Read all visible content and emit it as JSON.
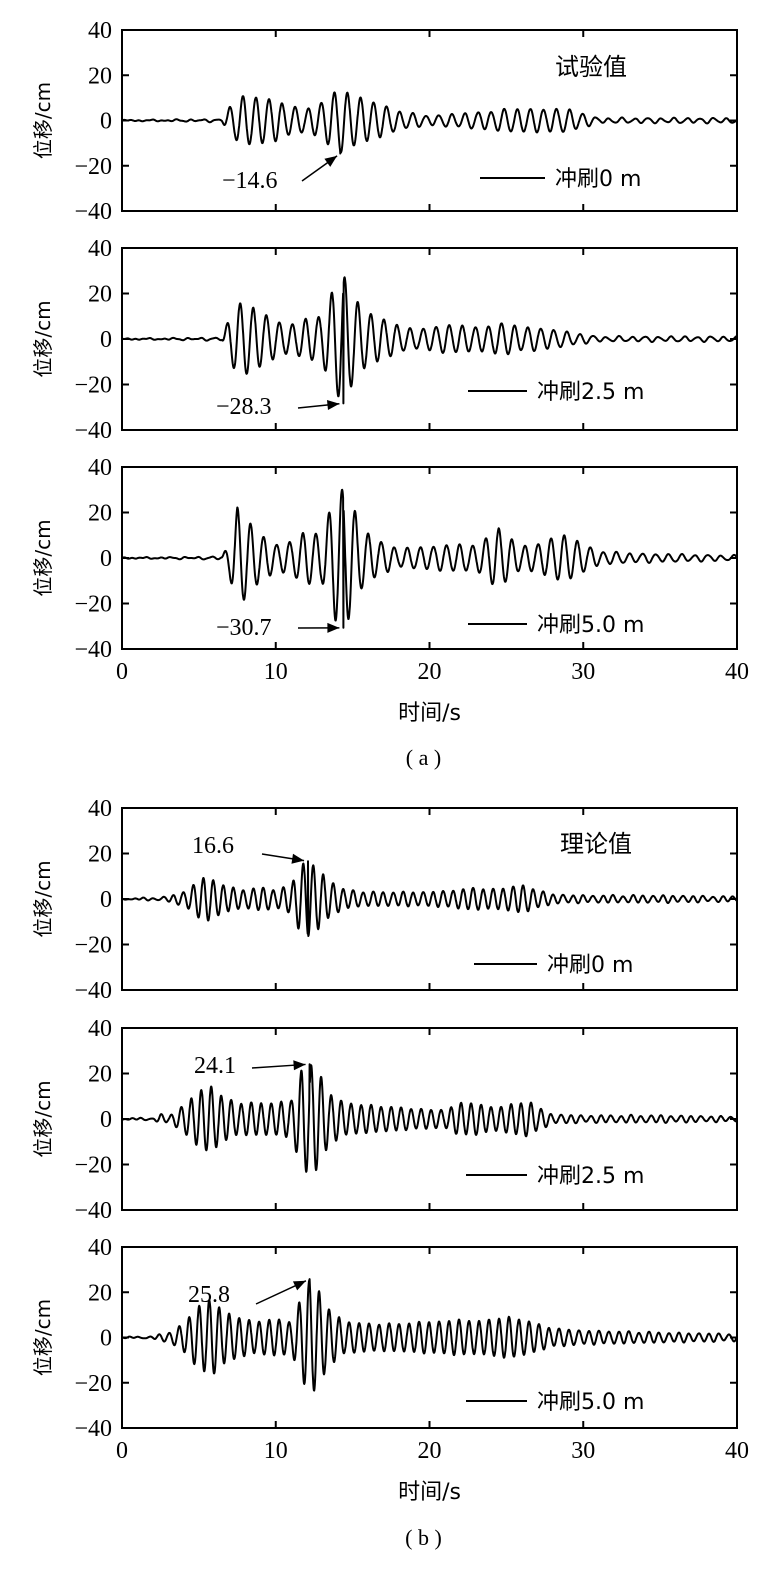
{
  "chart_data": [
    {
      "type": "line",
      "caption": "( a )",
      "title": "试验值",
      "xlabel": "时间/s",
      "ylabel": "位移/cm",
      "xlim": [
        0,
        40
      ],
      "ylim": [
        -40,
        40
      ],
      "xticks": [
        "0",
        "10",
        "20",
        "30",
        "40"
      ],
      "yticks": [
        "40",
        "20",
        "0",
        "-20",
        "-40"
      ],
      "panels": [
        {
          "legend": "冲刷0 m",
          "annotation": {
            "text": "-14.6",
            "x": 14.2,
            "y": -14.6
          },
          "envelope": [
            [
              0,
              0
            ],
            [
              6.5,
              0.5
            ],
            [
              7,
              6
            ],
            [
              7.5,
              9
            ],
            [
              8,
              11
            ],
            [
              9,
              10
            ],
            [
              10,
              9
            ],
            [
              11,
              6
            ],
            [
              12,
              5
            ],
            [
              13,
              8
            ],
            [
              14.2,
              14.6
            ],
            [
              14.7,
              12
            ],
            [
              15.5,
              10
            ],
            [
              16.5,
              8
            ],
            [
              18,
              4
            ],
            [
              20,
              2
            ],
            [
              22,
              3
            ],
            [
              24,
              4
            ],
            [
              25,
              5
            ],
            [
              26,
              5
            ],
            [
              27,
              5
            ],
            [
              28,
              5
            ],
            [
              29,
              5
            ],
            [
              30,
              3
            ],
            [
              31,
              1
            ],
            [
              35,
              1
            ],
            [
              40,
              1
            ]
          ]
        },
        {
          "legend": "冲刷2.5 m",
          "annotation": {
            "text": "-28.3",
            "x": 14.4,
            "y": -28.3
          },
          "envelope": [
            [
              0,
              0
            ],
            [
              6.5,
              0.5
            ],
            [
              7,
              10
            ],
            [
              7.5,
              15
            ],
            [
              8,
              16
            ],
            [
              9,
              12
            ],
            [
              10,
              8
            ],
            [
              11,
              6
            ],
            [
              12,
              9
            ],
            [
              13,
              10
            ],
            [
              13.8,
              23
            ],
            [
              14.4,
              28.3
            ],
            [
              14.9,
              21
            ],
            [
              15.5,
              14
            ],
            [
              16.5,
              10
            ],
            [
              18,
              6
            ],
            [
              19,
              4
            ],
            [
              20,
              5
            ],
            [
              21,
              6
            ],
            [
              22,
              6
            ],
            [
              23,
              5
            ],
            [
              24,
              6
            ],
            [
              25,
              7
            ],
            [
              26,
              5
            ],
            [
              27,
              5
            ],
            [
              28,
              4
            ],
            [
              29,
              3
            ],
            [
              30,
              2
            ],
            [
              31,
              1
            ],
            [
              40,
              1
            ]
          ]
        },
        {
          "legend": "冲刷5.0 m",
          "annotation": {
            "text": "-30.7",
            "x": 14.4,
            "y": -30.7
          },
          "envelope": [
            [
              0,
              0
            ],
            [
              6.5,
              0.5
            ],
            [
              7,
              8
            ],
            [
              7.5,
              22
            ],
            [
              8,
              18
            ],
            [
              9,
              10
            ],
            [
              10,
              6
            ],
            [
              11,
              7
            ],
            [
              12,
              12
            ],
            [
              13,
              10
            ],
            [
              13.8,
              27
            ],
            [
              14.4,
              30.7
            ],
            [
              14.9,
              25
            ],
            [
              15.5,
              14
            ],
            [
              16.5,
              8
            ],
            [
              18,
              4
            ],
            [
              20,
              5
            ],
            [
              22,
              6
            ],
            [
              23,
              5
            ],
            [
              24,
              11
            ],
            [
              24.5,
              13
            ],
            [
              25,
              10
            ],
            [
              26,
              5
            ],
            [
              27,
              6
            ],
            [
              28,
              9
            ],
            [
              29,
              10
            ],
            [
              30,
              6
            ],
            [
              31,
              3
            ],
            [
              33,
              2
            ],
            [
              40,
              1
            ]
          ]
        }
      ]
    },
    {
      "type": "line",
      "caption": "( b )",
      "title": "理论值",
      "xlabel": "时间/s",
      "ylabel": "位移/cm",
      "xlim": [
        0,
        40
      ],
      "ylim": [
        -40,
        40
      ],
      "xticks": [
        "0",
        "10",
        "20",
        "30",
        "40"
      ],
      "yticks": [
        "40",
        "20",
        "0",
        "-20",
        "-40"
      ],
      "panels": [
        {
          "legend": "冲刷0 m",
          "annotation": {
            "text": "16.6",
            "x": 12.1,
            "y": 16.6
          },
          "envelope": [
            [
              0,
              0
            ],
            [
              2,
              0.5
            ],
            [
              3,
              1
            ],
            [
              4,
              3
            ],
            [
              5,
              8
            ],
            [
              5.5,
              10
            ],
            [
              6,
              8
            ],
            [
              7,
              5
            ],
            [
              8,
              4
            ],
            [
              9,
              5
            ],
            [
              10,
              4
            ],
            [
              11,
              6
            ],
            [
              11.6,
              15
            ],
            [
              12.1,
              16.6
            ],
            [
              12.6,
              14
            ],
            [
              13.5,
              8
            ],
            [
              14.5,
              4
            ],
            [
              16,
              3
            ],
            [
              18,
              3
            ],
            [
              20,
              3
            ],
            [
              22,
              4
            ],
            [
              23,
              5
            ],
            [
              24,
              4
            ],
            [
              25,
              5
            ],
            [
              26,
              6
            ],
            [
              27,
              4
            ],
            [
              28,
              2
            ],
            [
              30,
              1.5
            ],
            [
              35,
              1.5
            ],
            [
              40,
              1
            ]
          ]
        },
        {
          "legend": "冲刷2.5 m",
          "annotation": {
            "text": "24.1",
            "x": 12.2,
            "y": 24.1
          },
          "envelope": [
            [
              0,
              0
            ],
            [
              2,
              0.5
            ],
            [
              2.5,
              2
            ],
            [
              3,
              1
            ],
            [
              4,
              6
            ],
            [
              5,
              12
            ],
            [
              5.7,
              15
            ],
            [
              6.5,
              10
            ],
            [
              7.5,
              7
            ],
            [
              8.5,
              7
            ],
            [
              10,
              7
            ],
            [
              11,
              8
            ],
            [
              11.7,
              22
            ],
            [
              12.2,
              24.1
            ],
            [
              12.7,
              22
            ],
            [
              13.5,
              11
            ],
            [
              14.5,
              7
            ],
            [
              16,
              6
            ],
            [
              18,
              5
            ],
            [
              20,
              4
            ],
            [
              21,
              4
            ],
            [
              22,
              7
            ],
            [
              23,
              7
            ],
            [
              24,
              5
            ],
            [
              25,
              6
            ],
            [
              26,
              7
            ],
            [
              26.5,
              8
            ],
            [
              27,
              5
            ],
            [
              28,
              2
            ],
            [
              30,
              1.5
            ],
            [
              35,
              1.5
            ],
            [
              40,
              1
            ]
          ]
        },
        {
          "legend": "冲刷5.0 m",
          "annotation": {
            "text": "25.8",
            "x": 12.2,
            "y": 25.8
          },
          "envelope": [
            [
              0,
              0
            ],
            [
              2,
              0.5
            ],
            [
              3,
              2
            ],
            [
              4,
              6
            ],
            [
              5,
              14
            ],
            [
              5.8,
              17
            ],
            [
              6.5,
              12
            ],
            [
              7.5,
              9
            ],
            [
              8.5,
              7
            ],
            [
              10,
              8
            ],
            [
              11,
              7
            ],
            [
              11.7,
              18
            ],
            [
              12.2,
              25.8
            ],
            [
              12.7,
              22
            ],
            [
              13.5,
              12
            ],
            [
              14.5,
              7
            ],
            [
              16,
              6
            ],
            [
              18,
              6
            ],
            [
              20,
              7
            ],
            [
              21,
              7
            ],
            [
              22,
              8
            ],
            [
              23,
              7
            ],
            [
              24,
              8
            ],
            [
              25,
              9
            ],
            [
              26,
              8
            ],
            [
              27,
              6
            ],
            [
              28,
              4
            ],
            [
              30,
              3
            ],
            [
              33,
              2.5
            ],
            [
              36,
              2
            ],
            [
              40,
              1.5
            ]
          ]
        }
      ]
    }
  ]
}
